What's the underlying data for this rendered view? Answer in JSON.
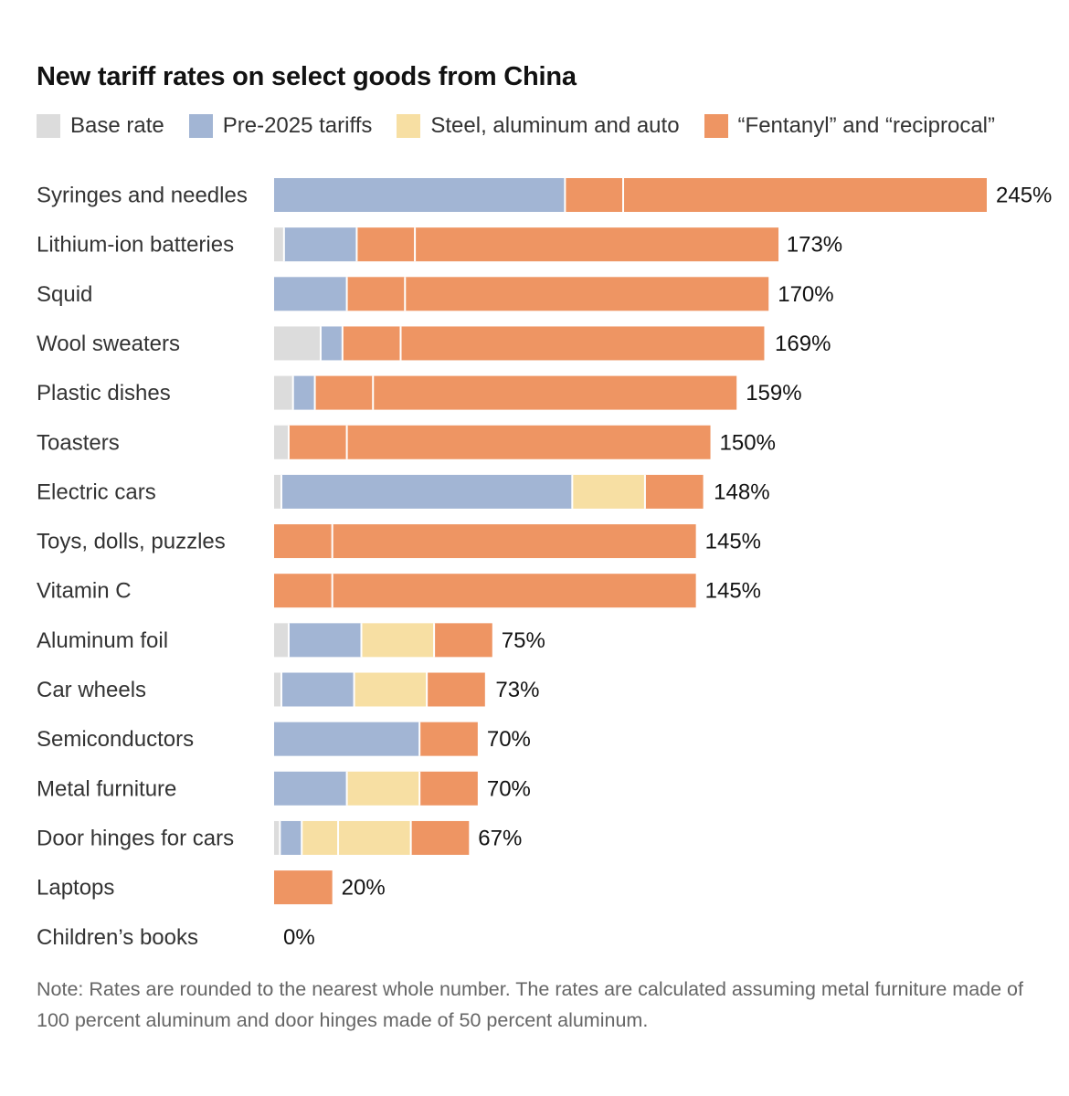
{
  "title": "New tariff rates on select goods from China",
  "legend": [
    {
      "key": "base",
      "label": "Base rate",
      "color": "#dcdcdc"
    },
    {
      "key": "pre2025",
      "label": "Pre-2025 tariffs",
      "color": "#a2b5d4"
    },
    {
      "key": "steel",
      "label": "Steel, aluminum and auto",
      "color": "#f7dfa3"
    },
    {
      "key": "fentanyl",
      "label": "“Fentanyl” and “reciprocal”",
      "color": "#ee9563"
    }
  ],
  "note": "Note: Rates are rounded to the nearest whole number. The rates are calculated assuming metal furniture made of 100 percent aluminum and door hinges made of 50 percent aluminum.",
  "chart_data": {
    "type": "bar",
    "orientation": "horizontal",
    "stacked": true,
    "title": "New tariff rates on select goods from China",
    "xlim": [
      0,
      245
    ],
    "grid": false,
    "legend_position": "top",
    "categories": [
      "Syringes and needles",
      "Lithium-ion batteries",
      "Squid",
      "Wool sweaters",
      "Plastic dishes",
      "Toasters",
      "Electric cars",
      "Toys, dolls, puzzles",
      "Vitamin C",
      "Aluminum foil",
      "Car wheels",
      "Semiconductors",
      "Metal furniture",
      "Door hinges for cars",
      "Laptops",
      "Children’s books"
    ],
    "series": [
      {
        "name": "Base rate",
        "color": "#dcdcdc",
        "values": [
          0,
          3.4,
          0,
          16,
          6.5,
          5,
          2.5,
          0,
          0,
          5,
          2.5,
          0,
          0,
          2,
          0,
          0
        ]
      },
      {
        "name": "Pre-2025 tariffs",
        "color": "#a2b5d4",
        "values": [
          100,
          25,
          25,
          7.5,
          7.5,
          0,
          100,
          0,
          0,
          25,
          25,
          50,
          25,
          7.5,
          0,
          0
        ]
      },
      {
        "name": "Steel, aluminum and auto",
        "color": "#f7dfa3",
        "values": [
          0,
          0,
          0,
          0,
          0,
          0,
          25,
          0,
          0,
          25,
          25,
          0,
          25,
          37.5,
          0,
          0
        ]
      },
      {
        "name": "“Fentanyl” and “reciprocal”",
        "color": "#ee9563",
        "values": [
          145,
          145,
          145,
          145,
          145,
          145,
          20,
          145,
          145,
          20,
          20,
          20,
          20,
          20,
          20,
          0
        ]
      }
    ],
    "segment_breaks": [
      [
        20
      ],
      [
        20
      ],
      [
        20
      ],
      [
        20
      ],
      [
        20
      ],
      [
        20
      ],
      [],
      [
        20
      ],
      [
        20
      ],
      [],
      [],
      [],
      [],
      [],
      [],
      []
    ],
    "steel_breaks": [
      [],
      [],
      [],
      [],
      [],
      [],
      [],
      [],
      [],
      [],
      [],
      [],
      [],
      [
        12.5
      ],
      [],
      []
    ],
    "totals": [
      245,
      173,
      170,
      169,
      159,
      150,
      148,
      145,
      145,
      75,
      73,
      70,
      70,
      67,
      20,
      0
    ],
    "total_labels": [
      "245%",
      "173%",
      "170%",
      "169%",
      "159%",
      "150%",
      "148%",
      "145%",
      "145%",
      "75%",
      "73%",
      "70%",
      "70%",
      "67%",
      "20%",
      "0%"
    ]
  }
}
